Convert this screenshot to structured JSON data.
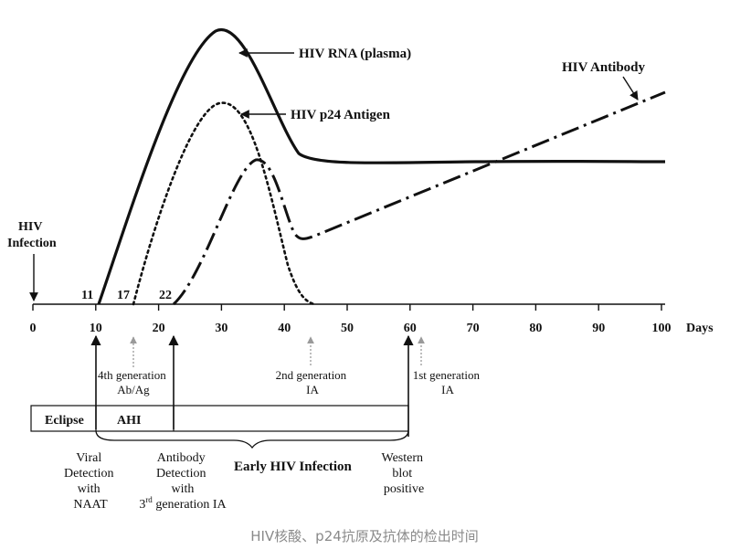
{
  "caption": "HIV核酸、p24抗原及抗体的检出时间",
  "axis": {
    "unit_label": "Days",
    "ticks": [
      0,
      10,
      20,
      30,
      40,
      50,
      60,
      70,
      80,
      90,
      100
    ],
    "marks": [
      "11",
      "17",
      "22"
    ]
  },
  "curves": {
    "rna_label": "HIV RNA (plasma)",
    "p24_label": "HIV p24 Antigen",
    "antibody_label": "HIV Antibody"
  },
  "infection_label": [
    "HIV",
    "Infection"
  ],
  "tests": {
    "gen4": [
      "4th generation",
      "Ab/Ag"
    ],
    "gen2": [
      "2nd generation",
      "IA"
    ],
    "gen1": [
      "1st generation",
      "IA"
    ]
  },
  "phases": {
    "eclipse": "Eclipse",
    "ahi": "AHI",
    "early": "Early HIV Infection"
  },
  "events": {
    "viral": [
      "Viral",
      "Detection",
      "with",
      "NAAT"
    ],
    "antibody": [
      "Antibody",
      "Detection",
      "with"
    ],
    "antibody_gen_num": "3",
    "antibody_gen_sup": "rd",
    "antibody_gen_rest": " generation IA",
    "western": [
      "Western",
      "blot",
      "positive"
    ]
  }
}
